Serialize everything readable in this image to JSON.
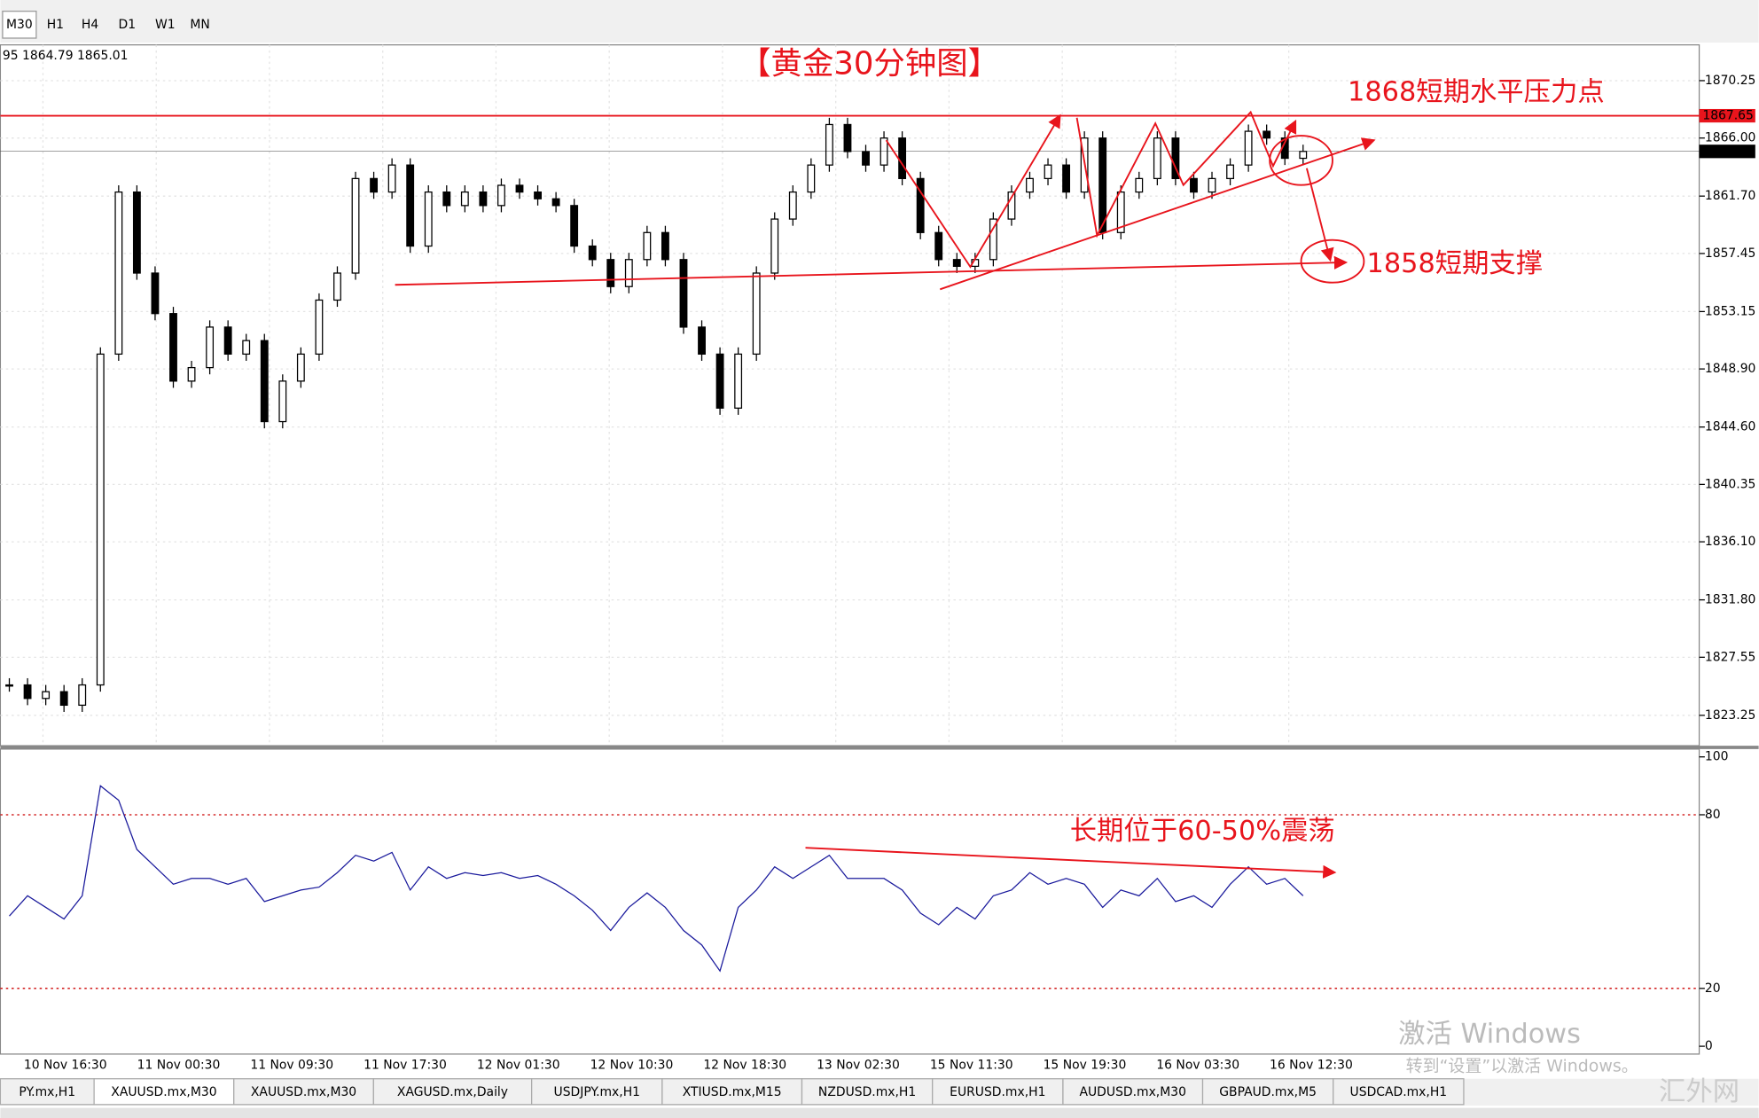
{
  "toolbar": {
    "timeframes": [
      "M30",
      "H1",
      "H4",
      "D1",
      "W1",
      "MN"
    ]
  },
  "chart_data": [
    {
      "type": "candlestick",
      "title": "【黄金30分钟图】",
      "info": "95 1864.79 1865.01",
      "values": [
        1825.5,
        1824.5,
        1825,
        1824,
        1825.5,
        1850,
        1862,
        1856,
        1853,
        1848,
        1849,
        1852,
        1850,
        1851,
        1845,
        1848,
        1850,
        1854,
        1856,
        1863,
        1862,
        1864,
        1858,
        1862,
        1861,
        1862,
        1861,
        1862.5,
        1862,
        1861.5,
        1861,
        1858,
        1857,
        1855,
        1857,
        1859,
        1857,
        1852,
        1850,
        1846,
        1850,
        1856,
        1860,
        1862,
        1864,
        1867,
        1865,
        1864,
        1866,
        1863,
        1859,
        1857,
        1856.5,
        1857,
        1860,
        1862,
        1863,
        1864,
        1862,
        1866,
        1859,
        1862,
        1863,
        1866,
        1863,
        1862,
        1863,
        1864,
        1866.5,
        1866,
        1864.5,
        1865.01
      ],
      "x_labels": [
        "10 Nov 16:30",
        "11 Nov 00:30",
        "11 Nov 09:30",
        "11 Nov 17:30",
        "12 Nov 01:30",
        "12 Nov 10:30",
        "12 Nov 18:30",
        "13 Nov 02:30",
        "15 Nov 11:30",
        "15 Nov 19:30",
        "16 Nov 03:30",
        "16 Nov 12:30"
      ],
      "ylim": [
        1821.0,
        1872.9
      ],
      "yticks": [
        {
          "value": 1870.25,
          "label": "1870.25"
        },
        {
          "value": 1866,
          "label": "1866.00"
        },
        {
          "value": 1861.7,
          "label": "1861.70"
        },
        {
          "value": 1857.45,
          "label": "1857.45"
        },
        {
          "value": 1853.15,
          "label": "1853.15"
        },
        {
          "value": 1848.9,
          "label": "1848.90"
        },
        {
          "value": 1844.6,
          "label": "1844.60"
        },
        {
          "value": 1840.35,
          "label": "1840.35"
        },
        {
          "value": 1836.1,
          "label": "1836.10"
        },
        {
          "value": 1831.8,
          "label": "1831.80"
        },
        {
          "value": 1827.55,
          "label": "1827.55"
        },
        {
          "value": 1823.25,
          "label": "1823.25"
        }
      ],
      "price_markers": [
        {
          "value": 1867.65,
          "color": "#e8141c"
        },
        {
          "value": 1865.01,
          "color": "#000000"
        }
      ],
      "annotations": [
        "1868短期水平压力点",
        "1858短期支撑"
      ],
      "grid": true
    },
    {
      "type": "line",
      "color": "#1a1a9c",
      "values": [
        45,
        52,
        48,
        44,
        52,
        90,
        85,
        68,
        62,
        56,
        58,
        58,
        56,
        58,
        50,
        52,
        54,
        55,
        60,
        66,
        64,
        67,
        54,
        62,
        58,
        60,
        59,
        60,
        58,
        59,
        56,
        52,
        47,
        40,
        48,
        53,
        48,
        40,
        35,
        26,
        48,
        54,
        62,
        58,
        62,
        66,
        58,
        58,
        58,
        54,
        46,
        42,
        48,
        44,
        52,
        54,
        60,
        56,
        58,
        56,
        48,
        54,
        52,
        58,
        50,
        52,
        48,
        56,
        62,
        56,
        58,
        52
      ],
      "ylim": [
        -2.7,
        102.7
      ],
      "yticks": [
        100,
        80,
        20,
        0
      ],
      "levels": [
        80,
        20
      ],
      "annotation": "长期位于60-50%震荡"
    }
  ],
  "tabs": [
    "PY.mx,H1",
    "XAUUSD.mx,M30",
    "XAUUSD.mx,M30",
    "XAGUSD.mx,Daily",
    "USDJPY.mx,H1",
    "XTIUSD.mx,M15",
    "NZDUSD.mx,H1",
    "EURUSD.mx,H1",
    "AUDUSD.mx,M30",
    "GBPAUD.mx,M5",
    "USDCAD.mx,H1"
  ],
  "watermark": {
    "line1": "激活 Windows",
    "line2": "转到“设置”以激活 Windows。",
    "site": "汇外网"
  }
}
